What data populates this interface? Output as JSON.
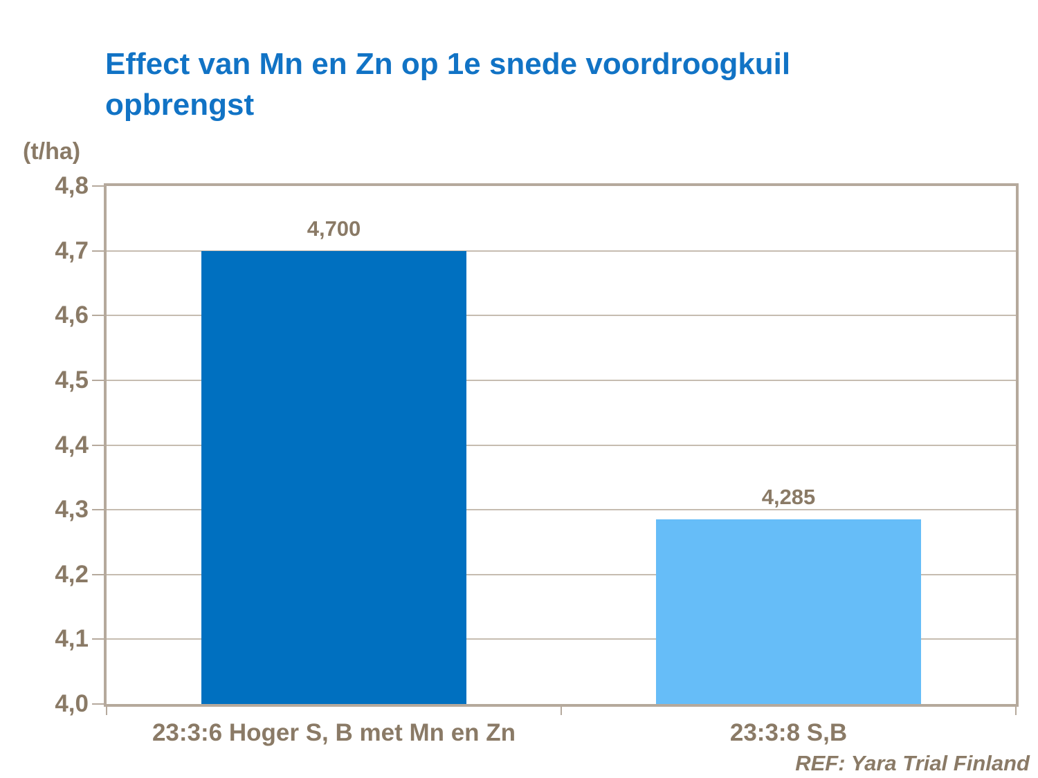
{
  "title": {
    "text": "Effect van Mn en Zn op 1e snede voordroogkuil opbrengst"
  },
  "footer": {
    "ref": "REF: Yara Trial Finland"
  },
  "colors": {
    "background": "#FFFFFF",
    "title_blue": "#1173C5",
    "axis_tan": "#B5A99C",
    "grid_tan": "#C6BCB0",
    "label_brown": "#8A7A66",
    "bar_dark_blue": "#0070C0",
    "bar_light_blue": "#66BDF8"
  },
  "chart_data": {
    "type": "bar",
    "title": "Effect van Mn en Zn op 1e snede voordroogkuil opbrengst",
    "categories": [
      "23:3:6 Hoger S, B met Mn en Zn",
      "23:3:8 S,B"
    ],
    "values": [
      4.7,
      4.285
    ],
    "value_labels": [
      "4,700",
      "4,285"
    ],
    "series_colors": [
      "#0070C0",
      "#66BDF8"
    ],
    "xlabel": "",
    "ylabel": "(t/ha)",
    "ylim": [
      4.0,
      4.8
    ],
    "ytick_step": 0.1,
    "ytick_labels": [
      "4,0",
      "4,1",
      "4,2",
      "4,3",
      "4,4",
      "4,5",
      "4,6",
      "4,7",
      "4,8"
    ],
    "grid": true,
    "legend": false,
    "annotations": [
      "REF: Yara Trial Finland"
    ]
  }
}
